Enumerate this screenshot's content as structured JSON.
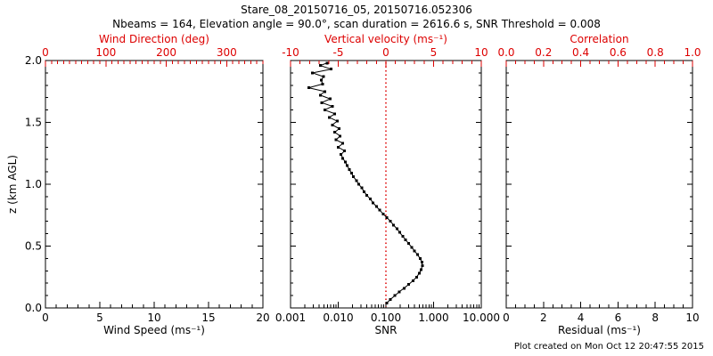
{
  "title": "Stare_08_20150716_05, 20150716.052306",
  "subtitle": "Nbeams = 164, Elevation angle = 90.0°, scan duration = 2616.6 s, SNR Threshold = 0.008",
  "footer": "Plot created on Mon Oct 12 20:47:55 2015",
  "colors": {
    "background": "#ffffff",
    "frame": "#000000",
    "secondary_axis": "#dd0000",
    "marker": "#000000",
    "refline": "#dd0000"
  },
  "y_axis": {
    "label": "z (km AGL)",
    "min": 0,
    "max": 2,
    "tick_values": [
      0.0,
      0.5,
      1.0,
      1.5,
      2.0
    ],
    "tick_labels": [
      "0.0",
      "0.5",
      "1.0",
      "1.5",
      "2.0"
    ],
    "minor_step": 0.1
  },
  "chart_data": [
    {
      "type": "scatter",
      "id": "wind",
      "bottom_axis": {
        "label": "Wind Speed (ms⁻¹)",
        "scale": "linear",
        "min": 0,
        "max": 20,
        "tick_values": [
          0,
          5,
          10,
          15,
          20
        ],
        "tick_labels": [
          "0",
          "5",
          "10",
          "15",
          "20"
        ],
        "minor_step": 1
      },
      "top_axis": {
        "label": "Wind Direction (deg)",
        "scale": "linear",
        "min": 0,
        "max": 360,
        "tick_values": [
          0,
          100,
          200,
          300
        ],
        "tick_labels": [
          "0",
          "100",
          "200",
          "300"
        ],
        "minor_step": 10
      },
      "ylim": [
        0,
        2
      ],
      "points": []
    },
    {
      "type": "scatter",
      "id": "snr",
      "bottom_axis": {
        "label": "SNR",
        "scale": "log",
        "min": 0.001,
        "max": 10,
        "tick_values": [
          0.001,
          0.01,
          0.1,
          1,
          10
        ],
        "tick_labels": [
          "0.001",
          "0.010",
          "0.100",
          "1.000",
          "10.000"
        ],
        "minor_step": null
      },
      "top_axis": {
        "label": "Vertical velocity (ms⁻¹)",
        "scale": "linear",
        "min": -10,
        "max": 10,
        "tick_values": [
          -10,
          -5,
          0,
          5,
          10
        ],
        "tick_labels": [
          "-10",
          "-5",
          "0",
          "5",
          "10"
        ],
        "minor_step": 1
      },
      "ylim": [
        0,
        2
      ],
      "refline_snr": 0.1,
      "points": [
        [
          0.105,
          0.04
        ],
        [
          0.125,
          0.07
        ],
        [
          0.155,
          0.1
        ],
        [
          0.19,
          0.13
        ],
        [
          0.24,
          0.16
        ],
        [
          0.3,
          0.19
        ],
        [
          0.37,
          0.22
        ],
        [
          0.44,
          0.25
        ],
        [
          0.5,
          0.28
        ],
        [
          0.55,
          0.31
        ],
        [
          0.58,
          0.34
        ],
        [
          0.57,
          0.37
        ],
        [
          0.52,
          0.4
        ],
        [
          0.46,
          0.43
        ],
        [
          0.4,
          0.46
        ],
        [
          0.35,
          0.49
        ],
        [
          0.3,
          0.52
        ],
        [
          0.26,
          0.55
        ],
        [
          0.225,
          0.58
        ],
        [
          0.195,
          0.61
        ],
        [
          0.17,
          0.64
        ],
        [
          0.145,
          0.67
        ],
        [
          0.125,
          0.7
        ],
        [
          0.105,
          0.73
        ],
        [
          0.088,
          0.76
        ],
        [
          0.074,
          0.79
        ],
        [
          0.063,
          0.82
        ],
        [
          0.054,
          0.85
        ],
        [
          0.047,
          0.88
        ],
        [
          0.04,
          0.91
        ],
        [
          0.035,
          0.94
        ],
        [
          0.031,
          0.97
        ],
        [
          0.027,
          1.0
        ],
        [
          0.024,
          1.03
        ],
        [
          0.021,
          1.06
        ],
        [
          0.019,
          1.09
        ],
        [
          0.017,
          1.12
        ],
        [
          0.0155,
          1.15
        ],
        [
          0.014,
          1.18
        ],
        [
          0.0125,
          1.21
        ],
        [
          0.0115,
          1.24
        ],
        [
          0.0135,
          1.27
        ],
        [
          0.01,
          1.3
        ],
        [
          0.0125,
          1.33
        ],
        [
          0.009,
          1.36
        ],
        [
          0.011,
          1.39
        ],
        [
          0.0085,
          1.42
        ],
        [
          0.0105,
          1.45
        ],
        [
          0.0075,
          1.48
        ],
        [
          0.0095,
          1.51
        ],
        [
          0.0065,
          1.54
        ],
        [
          0.0085,
          1.57
        ],
        [
          0.0052,
          1.6
        ],
        [
          0.0075,
          1.63
        ],
        [
          0.0045,
          1.66
        ],
        [
          0.0068,
          1.69
        ],
        [
          0.0042,
          1.72
        ],
        [
          0.0052,
          1.75
        ],
        [
          0.0024,
          1.78
        ],
        [
          0.0047,
          1.81
        ],
        [
          0.0044,
          1.84
        ],
        [
          0.0049,
          1.87
        ],
        [
          0.0029,
          1.9
        ],
        [
          0.0071,
          1.93
        ],
        [
          0.0042,
          1.96
        ],
        [
          0.0058,
          1.98
        ]
      ]
    },
    {
      "type": "scatter",
      "id": "residual",
      "bottom_axis": {
        "label": "Residual (ms⁻¹)",
        "scale": "linear",
        "min": 0,
        "max": 10,
        "tick_values": [
          0,
          2,
          4,
          6,
          8,
          10
        ],
        "tick_labels": [
          "0",
          "2",
          "4",
          "6",
          "8",
          "10"
        ],
        "minor_step": 0.5
      },
      "top_axis": {
        "label": "Correlation",
        "scale": "linear",
        "min": 0,
        "max": 1,
        "tick_values": [
          0.0,
          0.2,
          0.4,
          0.6,
          0.8,
          1.0
        ],
        "tick_labels": [
          "0.0",
          "0.2",
          "0.4",
          "0.6",
          "0.8",
          "1.0"
        ],
        "minor_step": 0.05
      },
      "ylim": [
        0,
        2
      ],
      "points": []
    }
  ]
}
